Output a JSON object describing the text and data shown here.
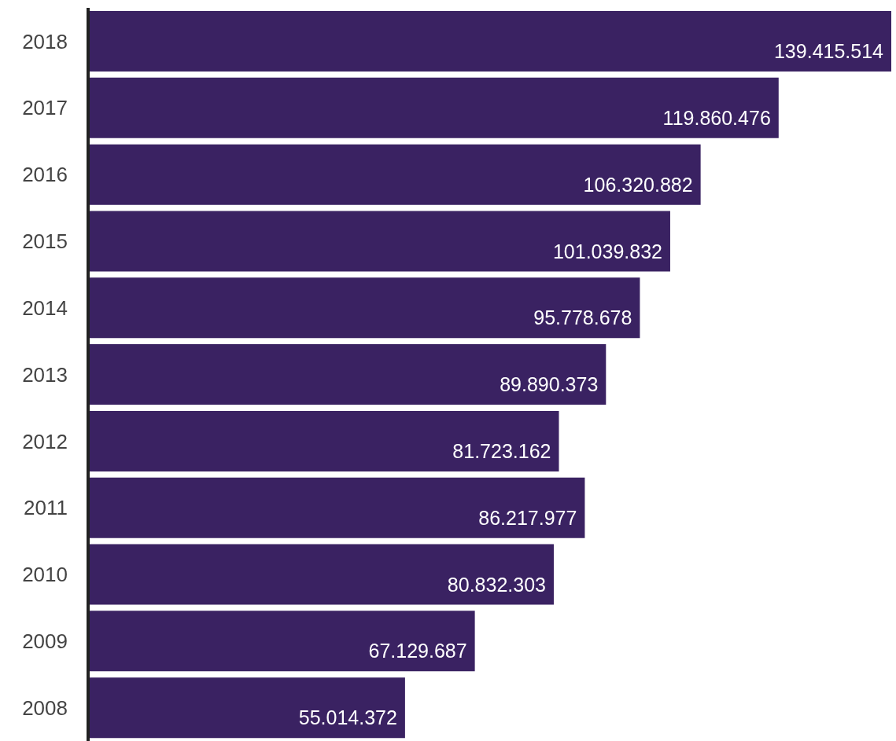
{
  "chart_data": {
    "type": "bar",
    "orientation": "horizontal",
    "categories": [
      "2018",
      "2017",
      "2016",
      "2015",
      "2014",
      "2013",
      "2012",
      "2011",
      "2010",
      "2009",
      "2008"
    ],
    "values": [
      139415514,
      119860476,
      106320882,
      101039832,
      95778678,
      89890373,
      81723162,
      86217977,
      80832303,
      67129687,
      55014372
    ],
    "value_labels": [
      "139.415.514",
      "119.860.476",
      "106.320.882",
      "101.039.832",
      "95.778.678",
      "89.890.373",
      "81.723.162",
      "86.217.977",
      "80.832.303",
      "67.129.687",
      "55.014.372"
    ],
    "color": "#3a2262",
    "grid": false,
    "legend": false
  }
}
